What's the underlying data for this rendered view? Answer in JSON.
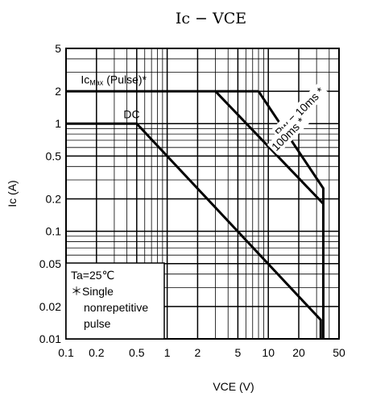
{
  "chart_data": {
    "type": "line",
    "title": "Ic − VCE",
    "xlabel": "VCE (V)",
    "ylabel": "Ic (A)",
    "xscale": "log",
    "yscale": "log",
    "xlim": [
      0.1,
      50
    ],
    "ylim": [
      0.01,
      5
    ],
    "x_ticks": [
      0.1,
      0.2,
      0.5,
      1,
      2,
      5,
      10,
      20,
      50
    ],
    "x_tick_labels": [
      "0.1",
      "0.2",
      "0.5",
      "1",
      "2",
      "5",
      "10",
      "20",
      "50"
    ],
    "y_ticks": [
      0.01,
      0.02,
      0.05,
      0.1,
      0.2,
      0.5,
      1,
      2,
      5
    ],
    "y_tick_labels": [
      "0.01",
      "0.02",
      "0.05",
      "0.1",
      "0.2",
      "0.5",
      "1",
      "2",
      "5"
    ],
    "grid": true,
    "series": [
      {
        "name": "Ic Max (Pulse)*",
        "x": [
          0.1,
          3.0,
          8.0
        ],
        "y": [
          2,
          2,
          2
        ]
      },
      {
        "name": "Pw = 10ms*",
        "x": [
          8.0,
          35.0,
          35.0
        ],
        "y": [
          2,
          0.25,
          0.01
        ]
      },
      {
        "name": "100ms*",
        "x": [
          3.0,
          35.0,
          35.0
        ],
        "y": [
          2,
          0.18,
          0.01
        ]
      },
      {
        "name": "DC",
        "x": [
          0.1,
          0.5,
          33.0,
          33.0
        ],
        "y": [
          1,
          1,
          0.015,
          0.01
        ]
      }
    ],
    "annotations": [
      {
        "text": "Ic",
        "sub": "Max",
        "rest": "(Pulse)*",
        "x": 0.14,
        "y": 2.35
      },
      {
        "text": "DC",
        "x": 0.37,
        "y": 1.12
      },
      {
        "text": "Pw = 10ms *",
        "x": 13,
        "y": 0.75,
        "angle": -45
      },
      {
        "text": "100ms *",
        "x": 12,
        "y": 0.55,
        "angle": -45
      }
    ],
    "note": [
      "Ta=25℃",
      "＊Single",
      "nonrepetitive",
      "pulse"
    ]
  }
}
